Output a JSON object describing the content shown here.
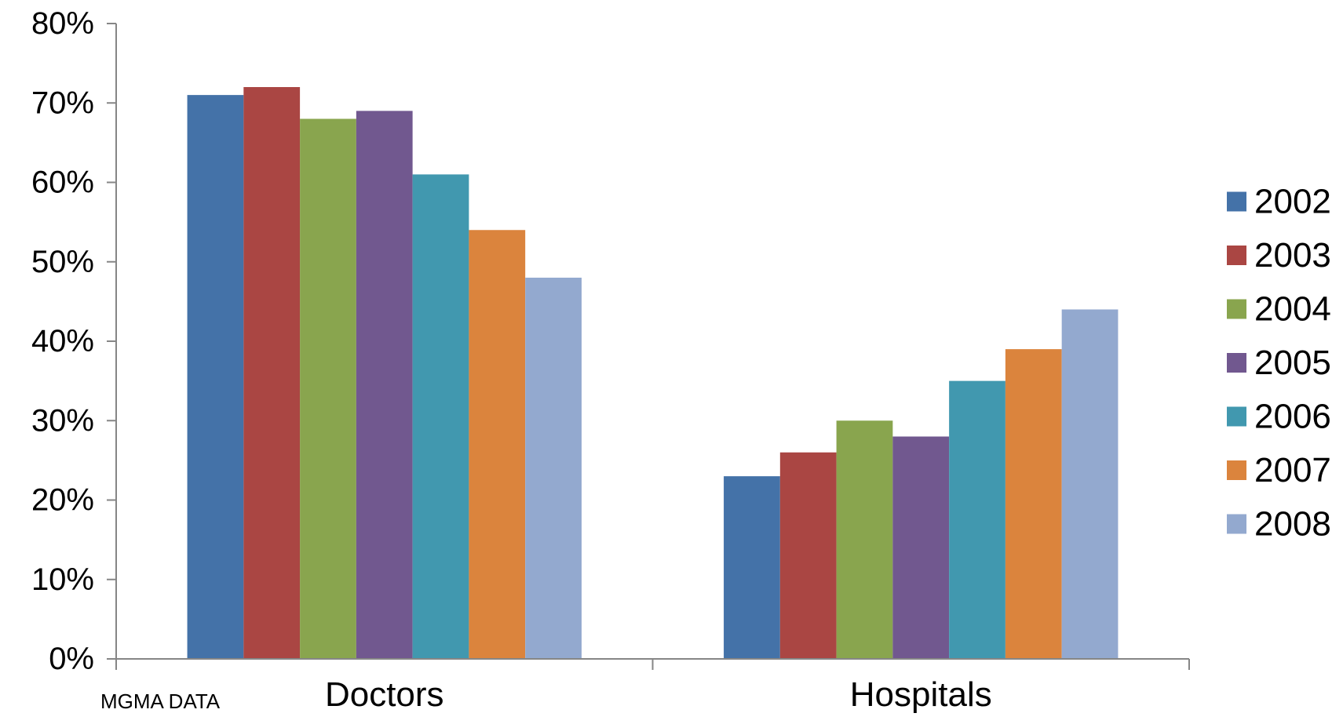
{
  "chart_data": {
    "type": "bar",
    "title": "",
    "xlabel": "",
    "ylabel": "",
    "categories": [
      "Doctors",
      "Hospitals"
    ],
    "ylim": [
      0,
      80
    ],
    "y_ticks": [
      "0%",
      "10%",
      "20%",
      "30%",
      "40%",
      "50%",
      "60%",
      "70%",
      "80%"
    ],
    "y_tick_values": [
      0,
      10,
      20,
      30,
      40,
      50,
      60,
      70,
      80
    ],
    "grid": false,
    "legend_position": "right",
    "series": [
      {
        "name": "2002",
        "color": "#4472A8",
        "values": [
          71,
          23
        ]
      },
      {
        "name": "2003",
        "color": "#AA4643",
        "values": [
          72,
          26
        ]
      },
      {
        "name": "2004",
        "color": "#89A54E",
        "values": [
          68,
          30
        ]
      },
      {
        "name": "2005",
        "color": "#71588F",
        "values": [
          69,
          28
        ]
      },
      {
        "name": "2006",
        "color": "#4198AF",
        "values": [
          61,
          35
        ]
      },
      {
        "name": "2007",
        "color": "#DB843D",
        "values": [
          54,
          39
        ]
      },
      {
        "name": "2008",
        "color": "#93A9CF",
        "values": [
          48,
          44
        ]
      }
    ]
  },
  "source_note": "MGMA DATA"
}
